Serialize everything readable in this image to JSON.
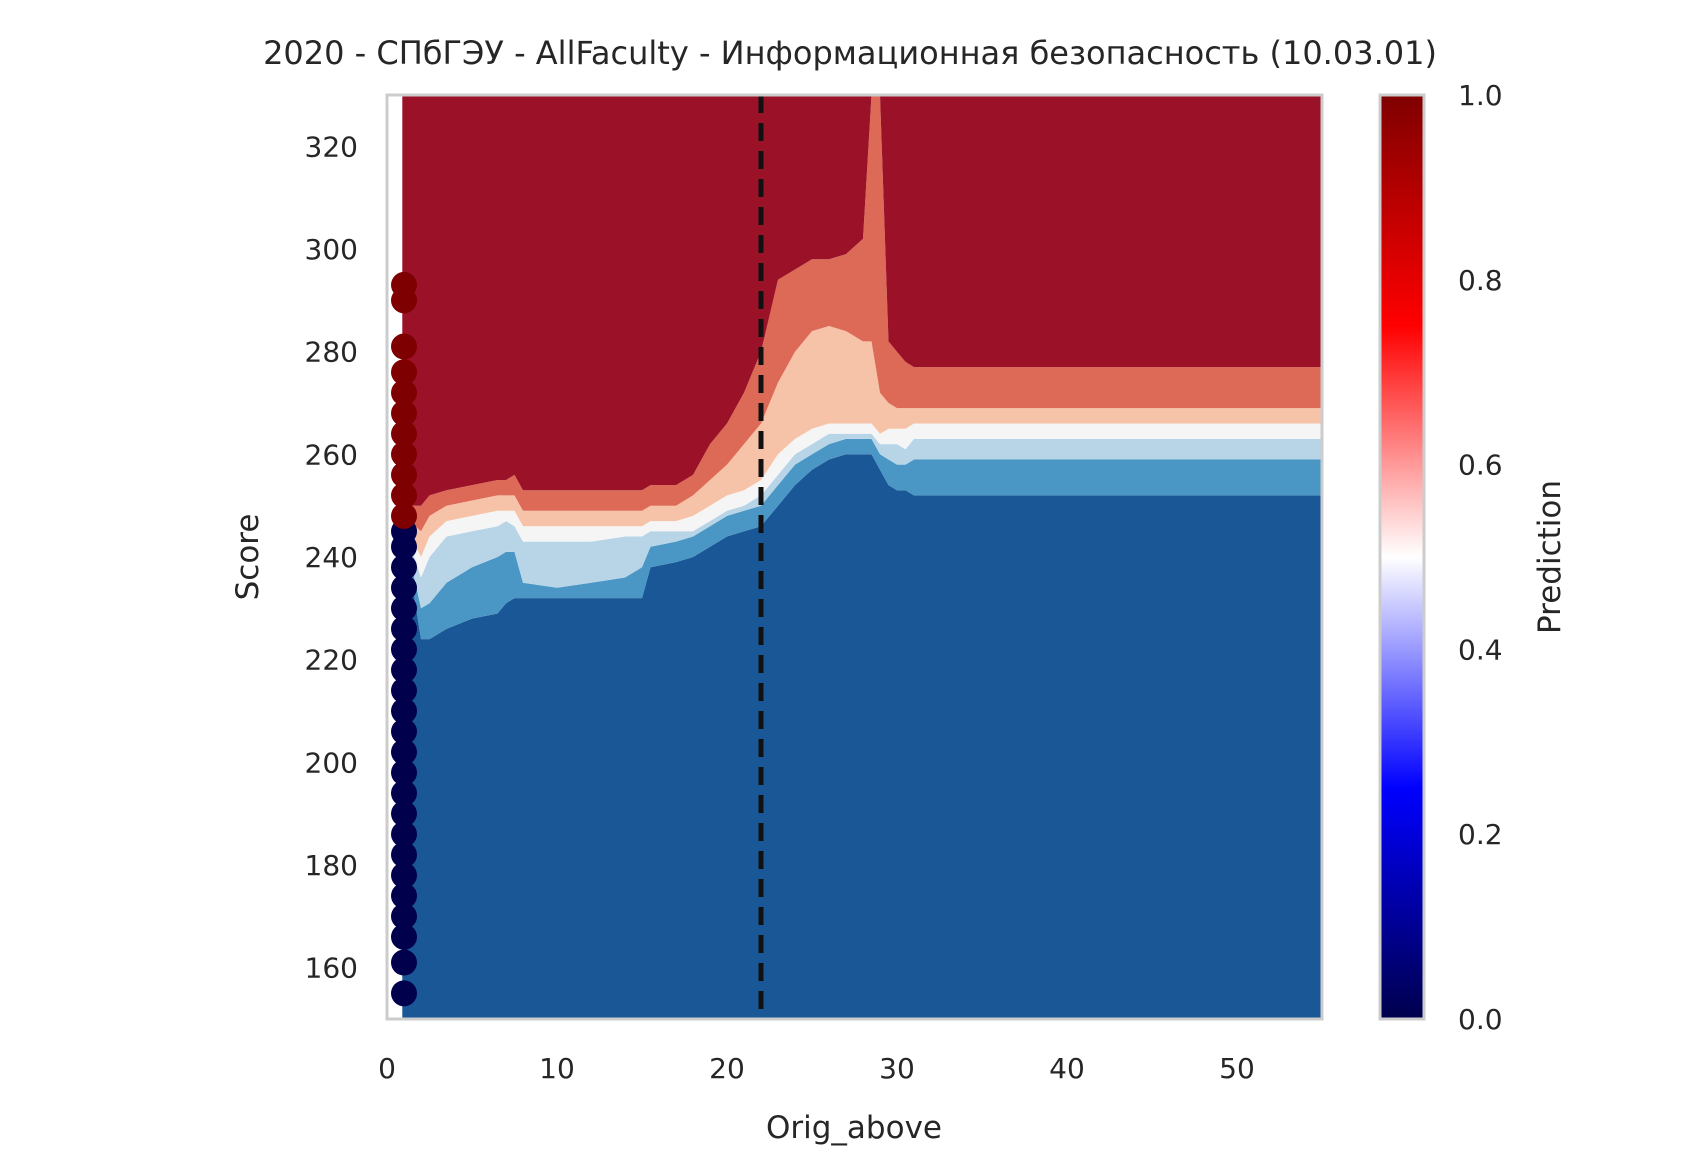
{
  "chart_data": {
    "type": "contour",
    "title": "2020 - СПбГЭУ - AllFaculty - Информационная безопасность (10.03.01)",
    "xlabel": "Orig_above",
    "ylabel": "Score",
    "xlim": [
      0,
      55
    ],
    "ylim": [
      150,
      330
    ],
    "xticks": [
      "0",
      "10",
      "20",
      "30",
      "40",
      "50"
    ],
    "xtick_values": [
      0,
      10,
      20,
      30,
      40,
      50
    ],
    "yticks": [
      "160",
      "180",
      "200",
      "220",
      "240",
      "260",
      "280",
      "300",
      "320"
    ],
    "ytick_values": [
      160,
      180,
      200,
      220,
      240,
      260,
      280,
      300,
      320
    ],
    "grid": false,
    "threshold_line": {
      "x": 22,
      "style": "dashed",
      "color": "#111111"
    },
    "colorbar": {
      "label": "Prediction",
      "ticks": [
        "0.0",
        "0.2",
        "0.4",
        "0.6",
        "0.8",
        "1.0"
      ],
      "tick_values": [
        0.0,
        0.2,
        0.4,
        0.6,
        0.8,
        1.0
      ],
      "colormap": "seismic",
      "stops": [
        "#00004c",
        "#0000ff",
        "#ffffff",
        "#ff0000",
        "#7f0000"
      ]
    },
    "contour_levels": [
      {
        "range": [
          0.0,
          0.2
        ],
        "color": "#1a5796"
      },
      {
        "range": [
          0.2,
          0.3
        ],
        "color": "#4a97c6"
      },
      {
        "range": [
          0.3,
          0.4
        ],
        "color": "#b8d5e8"
      },
      {
        "range": [
          0.4,
          0.5
        ],
        "color": "#f5f5f5"
      },
      {
        "range": [
          0.5,
          0.6
        ],
        "color": "#f7c3a8"
      },
      {
        "range": [
          0.6,
          0.8
        ],
        "color": "#dd6a57"
      },
      {
        "range": [
          0.8,
          1.0
        ],
        "color": "#9b1228"
      }
    ],
    "boundaries": {
      "x": [
        1.0,
        2.0,
        2.5,
        3.5,
        5.0,
        6.5,
        7.0,
        7.5,
        8.0,
        10.0,
        12.0,
        14.0,
        15.0,
        15.5,
        17.0,
        18.0,
        19.0,
        20.0,
        21.0,
        22.0,
        23.0,
        24.0,
        25.0,
        26.0,
        27.0,
        28.0,
        28.5,
        29.0,
        29.5,
        30.0,
        30.5,
        31.0,
        32.0,
        35.0,
        38.0,
        40.0,
        43.0,
        45.0,
        48.0,
        52.0,
        55.0
      ],
      "b1": [
        245,
        224,
        224,
        226,
        228,
        229,
        231,
        232,
        232,
        232,
        232,
        232,
        232,
        238,
        239,
        240,
        242,
        244,
        245,
        246,
        250,
        254,
        257,
        259,
        260,
        260,
        260,
        257,
        254,
        253,
        253,
        252,
        252,
        252,
        252,
        252,
        252,
        252,
        252,
        252,
        252
      ],
      "b2": [
        245,
        230,
        231,
        235,
        238,
        240,
        241,
        241,
        235,
        234,
        235,
        236,
        238,
        242,
        243,
        244,
        246,
        248,
        249,
        250,
        254,
        258,
        260,
        262,
        263,
        263,
        263,
        260,
        259,
        258,
        258,
        259,
        259,
        259,
        259,
        259,
        259,
        259,
        259,
        259,
        259
      ],
      "b3": [
        246,
        236,
        240,
        244,
        245,
        246,
        247,
        246,
        243,
        243,
        243,
        244,
        244,
        245,
        245,
        245,
        247,
        249,
        250,
        252,
        256,
        260,
        262,
        264,
        264,
        264,
        264,
        262,
        262,
        262,
        261,
        263,
        263,
        263,
        263,
        263,
        263,
        263,
        263,
        263,
        263
      ],
      "b4": [
        247,
        240,
        244,
        247,
        248,
        249,
        249,
        249,
        246,
        246,
        246,
        246,
        246,
        247,
        247,
        248,
        250,
        252,
        253,
        255,
        260,
        263,
        265,
        266,
        266,
        266,
        266,
        264,
        265,
        265,
        265,
        266,
        266,
        266,
        266,
        266,
        266,
        266,
        266,
        266,
        266
      ],
      "b5": [
        248,
        245,
        248,
        250,
        251,
        252,
        252,
        252,
        249,
        249,
        249,
        249,
        249,
        250,
        250,
        252,
        255,
        258,
        262,
        266,
        274,
        280,
        284,
        285,
        284,
        282,
        282,
        272,
        270,
        269,
        269,
        269,
        269,
        269,
        269,
        269,
        269,
        269,
        269,
        269,
        269
      ],
      "b6": [
        250,
        250,
        252,
        253,
        254,
        255,
        255,
        256,
        253,
        253,
        253,
        253,
        253,
        254,
        254,
        256,
        262,
        266,
        272,
        280,
        294,
        296,
        298,
        298,
        299,
        302,
        330,
        330,
        282,
        280,
        278,
        277,
        277,
        277,
        277,
        277,
        277,
        277,
        277,
        277,
        277
      ]
    },
    "points": {
      "x": 1,
      "blue_scores": [
        155,
        161,
        166,
        170,
        174,
        178,
        182,
        186,
        190,
        194,
        198,
        202,
        206,
        210,
        214,
        218,
        222,
        226,
        230,
        234,
        238,
        242,
        245
      ],
      "red_scores": [
        248,
        252,
        256,
        260,
        264,
        268,
        272,
        276,
        281,
        290,
        293
      ],
      "blue_color": "#00004c",
      "red_color": "#7f0000"
    }
  }
}
